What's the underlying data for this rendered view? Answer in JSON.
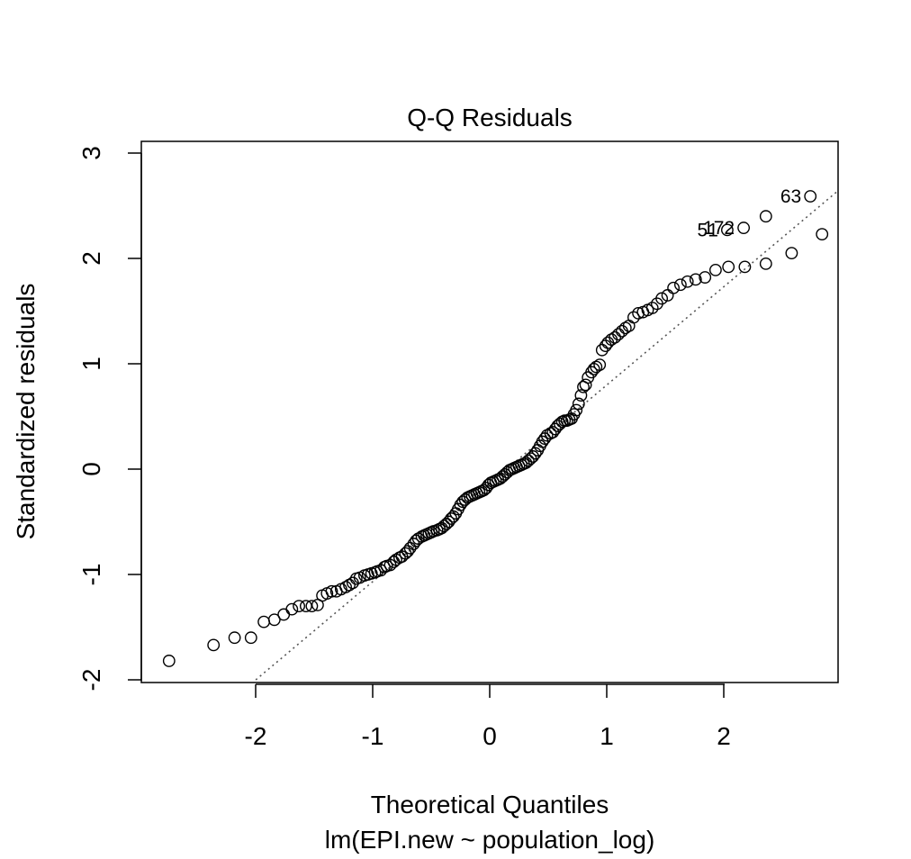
{
  "chart_data": {
    "type": "scatter",
    "title": "Q-Q Residuals",
    "xlabel": "Theoretical Quantiles",
    "subtitle": "lm(EPI.new ~ population_log)",
    "ylabel": "Standardized residuals",
    "xlim": [
      -3.0,
      2.98
    ],
    "ylim": [
      -2.0,
      3.0
    ],
    "xticks": [
      -2,
      -1,
      0,
      1,
      2
    ],
    "xtick_labels": [
      "-2",
      "-1",
      "0",
      "1",
      "2"
    ],
    "yticks": [
      -2,
      -1,
      0,
      1,
      2,
      3
    ],
    "ytick_labels": [
      "-2",
      "-1",
      "0",
      "1",
      "2",
      "3"
    ],
    "reference_line": {
      "slope": 0.933,
      "intercept": -0.135,
      "style": "dotted",
      "color": "#555555"
    },
    "annotations": [
      {
        "text": "63",
        "x": 2.74,
        "y": 2.59
      },
      {
        "text": "172",
        "x": 2.17,
        "y": 2.29
      },
      {
        "text": "51",
        "x": 2.03,
        "y": 2.27
      }
    ],
    "series": [
      {
        "points": [
          [
            -2.74,
            -1.82
          ],
          [
            -2.36,
            -1.67
          ],
          [
            -2.18,
            -1.6
          ],
          [
            -2.04,
            -1.6
          ],
          [
            -1.93,
            -1.45
          ],
          [
            -1.84,
            -1.43
          ],
          [
            -1.76,
            -1.38
          ],
          [
            -1.69,
            -1.33
          ],
          [
            -1.63,
            -1.3
          ],
          [
            -1.57,
            -1.3
          ],
          [
            -1.52,
            -1.3
          ],
          [
            -1.47,
            -1.29
          ],
          [
            -1.43,
            -1.2
          ],
          [
            -1.39,
            -1.18
          ],
          [
            -1.35,
            -1.16
          ],
          [
            -1.31,
            -1.16
          ],
          [
            -1.27,
            -1.14
          ],
          [
            -1.23,
            -1.12
          ],
          [
            -1.2,
            -1.1
          ],
          [
            -1.17,
            -1.08
          ],
          [
            -1.14,
            -1.04
          ],
          [
            -1.11,
            -1.03
          ],
          [
            -1.07,
            -1.01
          ],
          [
            -1.04,
            -1.0
          ],
          [
            -1.01,
            -0.99
          ],
          [
            -0.98,
            -0.98
          ],
          [
            -0.96,
            -0.97
          ],
          [
            -0.93,
            -0.96
          ],
          [
            -0.9,
            -0.93
          ],
          [
            -0.88,
            -0.92
          ],
          [
            -0.85,
            -0.91
          ],
          [
            -0.82,
            -0.88
          ],
          [
            -0.8,
            -0.86
          ],
          [
            -0.77,
            -0.84
          ],
          [
            -0.75,
            -0.83
          ],
          [
            -0.72,
            -0.8
          ],
          [
            -0.7,
            -0.78
          ],
          [
            -0.68,
            -0.75
          ],
          [
            -0.65,
            -0.71
          ],
          [
            -0.63,
            -0.68
          ],
          [
            -0.61,
            -0.66
          ],
          [
            -0.58,
            -0.64
          ],
          [
            -0.56,
            -0.63
          ],
          [
            -0.54,
            -0.62
          ],
          [
            -0.52,
            -0.61
          ],
          [
            -0.5,
            -0.6
          ],
          [
            -0.48,
            -0.59
          ],
          [
            -0.45,
            -0.58
          ],
          [
            -0.43,
            -0.57
          ],
          [
            -0.41,
            -0.56
          ],
          [
            -0.39,
            -0.54
          ],
          [
            -0.37,
            -0.52
          ],
          [
            -0.35,
            -0.5
          ],
          [
            -0.33,
            -0.47
          ],
          [
            -0.31,
            -0.45
          ],
          [
            -0.29,
            -0.42
          ],
          [
            -0.27,
            -0.38
          ],
          [
            -0.25,
            -0.34
          ],
          [
            -0.23,
            -0.31
          ],
          [
            -0.21,
            -0.29
          ],
          [
            -0.19,
            -0.27
          ],
          [
            -0.17,
            -0.26
          ],
          [
            -0.15,
            -0.25
          ],
          [
            -0.13,
            -0.24
          ],
          [
            -0.11,
            -0.23
          ],
          [
            -0.09,
            -0.22
          ],
          [
            -0.07,
            -0.21
          ],
          [
            -0.05,
            -0.2
          ],
          [
            -0.03,
            -0.18
          ],
          [
            -0.01,
            -0.15
          ],
          [
            0.01,
            -0.13
          ],
          [
            0.03,
            -0.12
          ],
          [
            0.05,
            -0.11
          ],
          [
            0.07,
            -0.1
          ],
          [
            0.09,
            -0.09
          ],
          [
            0.11,
            -0.07
          ],
          [
            0.13,
            -0.05
          ],
          [
            0.15,
            -0.03
          ],
          [
            0.17,
            -0.01
          ],
          [
            0.19,
            0.0
          ],
          [
            0.21,
            0.01
          ],
          [
            0.23,
            0.02
          ],
          [
            0.25,
            0.03
          ],
          [
            0.27,
            0.04
          ],
          [
            0.29,
            0.05
          ],
          [
            0.31,
            0.06
          ],
          [
            0.33,
            0.08
          ],
          [
            0.35,
            0.1
          ],
          [
            0.37,
            0.12
          ],
          [
            0.39,
            0.15
          ],
          [
            0.41,
            0.18
          ],
          [
            0.43,
            0.22
          ],
          [
            0.45,
            0.26
          ],
          [
            0.47,
            0.29
          ],
          [
            0.49,
            0.32
          ],
          [
            0.52,
            0.34
          ],
          [
            0.54,
            0.35
          ],
          [
            0.56,
            0.38
          ],
          [
            0.58,
            0.41
          ],
          [
            0.6,
            0.43
          ],
          [
            0.62,
            0.45
          ],
          [
            0.64,
            0.46
          ],
          [
            0.66,
            0.46
          ],
          [
            0.68,
            0.47
          ],
          [
            0.7,
            0.48
          ],
          [
            0.72,
            0.52
          ],
          [
            0.74,
            0.56
          ],
          [
            0.76,
            0.62
          ],
          [
            0.78,
            0.7
          ],
          [
            0.8,
            0.78
          ],
          [
            0.82,
            0.8
          ],
          [
            0.84,
            0.87
          ],
          [
            0.87,
            0.92
          ],
          [
            0.89,
            0.95
          ],
          [
            0.91,
            0.97
          ],
          [
            0.94,
            0.99
          ],
          [
            0.96,
            1.13
          ],
          [
            0.99,
            1.17
          ],
          [
            1.01,
            1.2
          ],
          [
            1.04,
            1.23
          ],
          [
            1.07,
            1.25
          ],
          [
            1.1,
            1.28
          ],
          [
            1.13,
            1.31
          ],
          [
            1.16,
            1.34
          ],
          [
            1.19,
            1.36
          ],
          [
            1.23,
            1.44
          ],
          [
            1.27,
            1.48
          ],
          [
            1.31,
            1.49
          ],
          [
            1.35,
            1.51
          ],
          [
            1.39,
            1.53
          ],
          [
            1.43,
            1.57
          ],
          [
            1.47,
            1.62
          ],
          [
            1.52,
            1.65
          ],
          [
            1.57,
            1.72
          ],
          [
            1.63,
            1.75
          ],
          [
            1.69,
            1.78
          ],
          [
            1.76,
            1.8
          ],
          [
            1.84,
            1.82
          ],
          [
            1.93,
            1.89
          ],
          [
            2.04,
            1.92
          ],
          [
            2.18,
            1.92
          ],
          [
            2.36,
            1.95
          ],
          [
            2.58,
            2.05
          ],
          [
            2.84,
            2.23
          ],
          [
            2.03,
            2.27
          ],
          [
            2.17,
            2.29
          ],
          [
            2.36,
            2.4
          ],
          [
            2.74,
            2.59
          ]
        ]
      }
    ]
  }
}
